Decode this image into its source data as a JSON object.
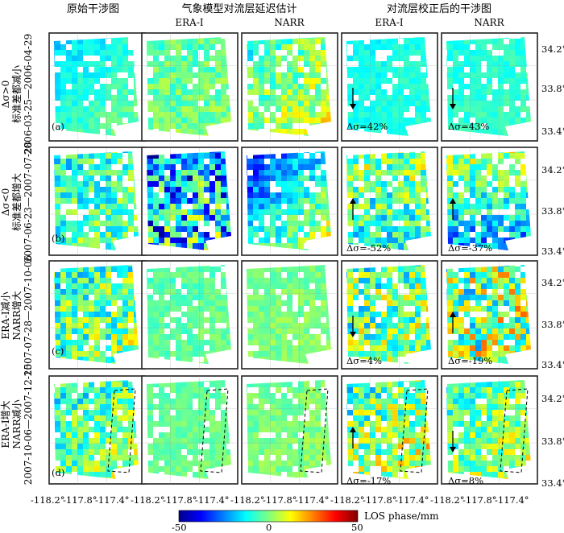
{
  "headers": {
    "original": "原始干涉图",
    "model_estimate": "气象模型对流层延迟估计",
    "corrected": "对流层校正后的干涉图"
  },
  "subheaders": [
    "ERA-I",
    "NARR",
    "ERA-I",
    "NARR"
  ],
  "rows": [
    {
      "label_lines": [
        "2006-03-25—2006-04-29",
        "标准差都减小",
        "Δσ>0"
      ],
      "panel_letter": "(a)",
      "era_change": "Δσ=42%",
      "era_arrow": "down",
      "narr_change": "Δσ=43%",
      "narr_arrow": "down"
    },
    {
      "label_lines": [
        "2007-06-23—2007-07-28",
        "标准差都增大",
        "Δσ<0"
      ],
      "panel_letter": "(b)",
      "era_change": "Δσ=-52%",
      "era_arrow": "up",
      "narr_change": "Δσ=-37%",
      "narr_arrow": "up"
    },
    {
      "label_lines": [
        "2007-07-28—2007-10-06",
        "NARR增大",
        "ERA-I减小"
      ],
      "panel_letter": "(c)",
      "era_change": "Δσ=4%",
      "era_arrow": "down",
      "narr_change": "Δσ=-19%",
      "narr_arrow": "up"
    },
    {
      "label_lines": [
        "2007-10-06—2007-12-15",
        "NARR减小",
        "ERA-I增大"
      ],
      "panel_letter": "(d)",
      "era_change": "Δσ=-17%",
      "era_arrow": "up",
      "narr_change": "Δσ=8%",
      "narr_arrow": "down"
    }
  ],
  "x_tick_labels": [
    "-118.2°",
    "-117.8°",
    "-117.4°"
  ],
  "y_tick_labels": [
    "34.2°",
    "33.8°",
    "33.4°"
  ],
  "colorbar": {
    "min": "-50",
    "mid": "0",
    "max": "50",
    "unit": "LOS phase/mm"
  }
}
